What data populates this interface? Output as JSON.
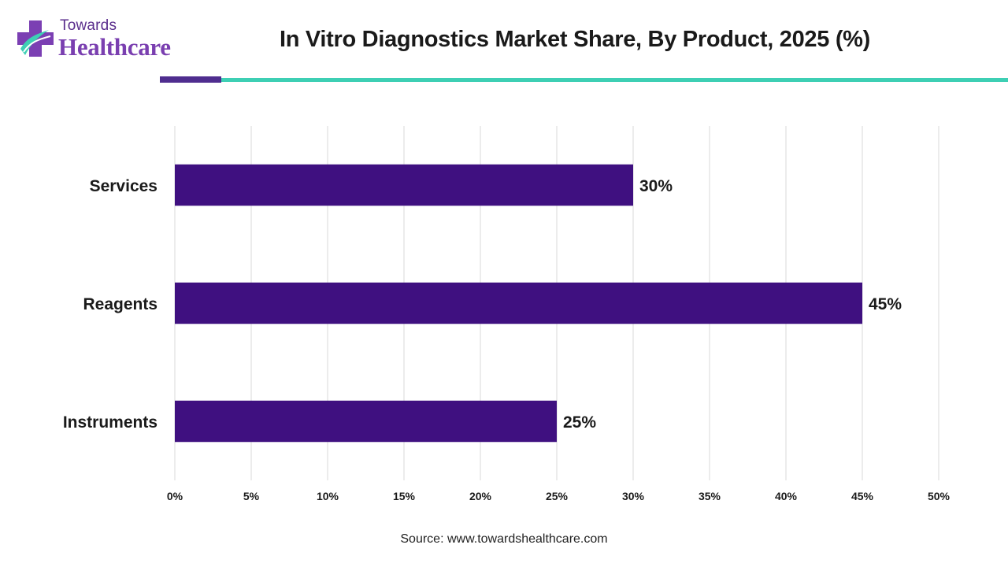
{
  "brand": {
    "line1": "Towards",
    "line2": "Healthcare",
    "colors": {
      "accent": "#4f2d8f",
      "teal": "#3ecfb4"
    }
  },
  "title": "In Vitro Diagnostics Market Share, By Product, 2025 (%)",
  "source": "Source: www.towardshealthcare.com",
  "chart_data": {
    "type": "bar",
    "orientation": "horizontal",
    "categories": [
      "Services",
      "Reagents",
      "Instruments"
    ],
    "values": [
      30,
      45,
      25
    ],
    "value_labels": [
      "30%",
      "45%",
      "25%"
    ],
    "xlim": [
      0,
      50
    ],
    "x_ticks": [
      0,
      5,
      10,
      15,
      20,
      25,
      30,
      35,
      40,
      45,
      50
    ],
    "x_tick_labels": [
      "0%",
      "5%",
      "10%",
      "15%",
      "20%",
      "25%",
      "30%",
      "35%",
      "40%",
      "45%",
      "50%"
    ],
    "grid": true,
    "bar_color": "#3f1080",
    "grid_color": "#d9d9d9",
    "xlabel": "",
    "ylabel": ""
  }
}
